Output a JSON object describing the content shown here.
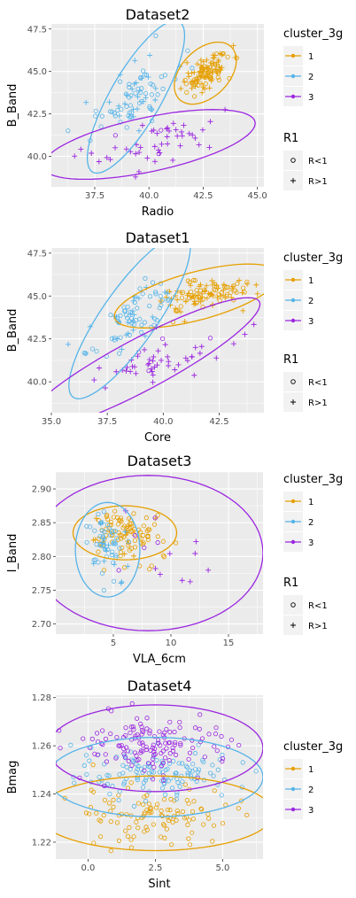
{
  "figure": {
    "panels": [
      {
        "title": "Dataset2",
        "x_label": "Radio",
        "y_label": "B_Band"
      },
      {
        "title": "Dataset1",
        "x_label": "Core",
        "y_label": "B_Band"
      },
      {
        "title": "Dataset3",
        "x_label": "VLA_6cm",
        "y_label": "I_Band"
      },
      {
        "title": "Dataset4",
        "x_label": "Sint",
        "y_label": "Bmag"
      }
    ]
  },
  "colors": {
    "cluster_1": "#E69F00",
    "cluster_2": "#56B4E9",
    "cluster_3": "#9B26E0",
    "panel_bg": "#EBEBEB",
    "grid": "#FFFFFF"
  },
  "chart_data": [
    {
      "type": "scatter",
      "title": "Dataset2",
      "xlabel": "Radio",
      "ylabel": "B_Band",
      "xlim": [
        35.5,
        45.3
      ],
      "ylim": [
        38.2,
        47.8
      ],
      "x_ticks": [
        37.5,
        40.0,
        42.5,
        45.0
      ],
      "x_tick_labels": [
        "37.5",
        "40.0",
        "42.5",
        "45.0"
      ],
      "y_ticks": [
        40.0,
        42.5,
        45.0,
        47.5
      ],
      "y_tick_labels": [
        "40.0",
        "42.5",
        "45.0",
        "47.5"
      ],
      "legend": [
        {
          "title": "cluster_3g",
          "entries": [
            "1",
            "2",
            "3"
          ]
        },
        {
          "title": "R1",
          "entries": [
            "R<1",
            "R>1"
          ]
        }
      ],
      "legend_position": "right",
      "ellipses": [
        {
          "cluster": "1",
          "cx": 42.6,
          "cy": 44.9,
          "rx": 1.7,
          "ry": 1.4,
          "angle_deg": 45
        },
        {
          "cluster": "2",
          "cx": 39.4,
          "cy": 43.5,
          "rx": 4.0,
          "ry": 1.5,
          "angle_deg": 60
        },
        {
          "cluster": "3",
          "cx": 40.0,
          "cy": 40.7,
          "rx": 5.0,
          "ry": 1.6,
          "angle_deg": 12
        }
      ],
      "groups": [
        {
          "cluster": "1",
          "cx": 42.6,
          "cy": 44.9,
          "sx": 0.55,
          "sy": 0.55,
          "rho": 0.6,
          "n": 110,
          "frac_plus": 0.55
        },
        {
          "cluster": "2",
          "cx": 39.4,
          "cy": 43.6,
          "sx": 0.9,
          "sy": 1.3,
          "rho": 0.7,
          "n": 80,
          "frac_plus": 0.3
        },
        {
          "cluster": "3",
          "cx": 40.0,
          "cy": 40.8,
          "sx": 1.6,
          "sy": 0.8,
          "rho": 0.45,
          "n": 50,
          "frac_plus": 0.9
        }
      ]
    },
    {
      "type": "scatter",
      "title": "Dataset1",
      "xlabel": "Core",
      "ylabel": "B_Band",
      "xlim": [
        35.0,
        44.5
      ],
      "ylim": [
        38.2,
        47.8
      ],
      "x_ticks": [
        35.0,
        37.5,
        40.0,
        42.5
      ],
      "x_tick_labels": [
        "35.0",
        "37.5",
        "40.0",
        "42.5"
      ],
      "y_ticks": [
        40.0,
        42.5,
        45.0,
        47.5
      ],
      "y_tick_labels": [
        "40.0",
        "42.5",
        "45.0",
        "47.5"
      ],
      "legend": [
        {
          "title": "cluster_3g",
          "entries": [
            "1",
            "2",
            "3"
          ]
        },
        {
          "title": "R1",
          "entries": [
            "R<1",
            "R>1"
          ]
        }
      ],
      "legend_position": "right",
      "ellipses": [
        {
          "cluster": "1",
          "cx": 41.5,
          "cy": 45.0,
          "rx": 3.8,
          "ry": 1.4,
          "angle_deg": 15
        },
        {
          "cluster": "2",
          "cx": 38.5,
          "cy": 43.8,
          "rx": 4.4,
          "ry": 1.6,
          "angle_deg": 55
        },
        {
          "cluster": "3",
          "cx": 39.0,
          "cy": 41.0,
          "rx": 6.0,
          "ry": 1.5,
          "angle_deg": 28
        }
      ],
      "groups": [
        {
          "cluster": "1",
          "cx": 41.6,
          "cy": 45.0,
          "sx": 1.1,
          "sy": 0.5,
          "rho": 0.4,
          "n": 110,
          "frac_plus": 0.6
        },
        {
          "cluster": "2",
          "cx": 38.6,
          "cy": 43.8,
          "sx": 1.0,
          "sy": 1.1,
          "rho": 0.75,
          "n": 80,
          "frac_plus": 0.3
        },
        {
          "cluster": "3",
          "cx": 39.2,
          "cy": 41.0,
          "sx": 1.9,
          "sy": 0.9,
          "rho": 0.7,
          "n": 50,
          "frac_plus": 0.9
        }
      ]
    },
    {
      "type": "scatter",
      "title": "Dataset3",
      "xlabel": "VLA_6cm",
      "ylabel": "I_Band",
      "xlim": [
        0.0,
        18.0
      ],
      "ylim": [
        2.685,
        2.925
      ],
      "x_ticks": [
        5,
        10,
        15
      ],
      "x_tick_labels": [
        "5",
        "10",
        "15"
      ],
      "y_ticks": [
        2.7,
        2.75,
        2.8,
        2.85,
        2.9
      ],
      "y_tick_labels": [
        "2.70",
        "2.75",
        "2.80",
        "2.85",
        "2.90"
      ],
      "legend": [
        {
          "title": "cluster_3g",
          "entries": [
            "1",
            "2",
            "3"
          ]
        },
        {
          "title": "R1",
          "entries": [
            "R<1",
            "R>1"
          ]
        }
      ],
      "legend_position": "right",
      "ellipses": [
        {
          "cluster": "1",
          "cx": 6.0,
          "cy": 2.835,
          "rx": 4.5,
          "ry": 0.04,
          "angle_deg": 0
        },
        {
          "cluster": "2",
          "cx": 4.5,
          "cy": 2.81,
          "rx": 2.8,
          "ry": 0.07,
          "angle_deg": 0
        },
        {
          "cluster": "3",
          "cx": 8.0,
          "cy": 2.805,
          "rx": 10.0,
          "ry": 0.115,
          "angle_deg": 0
        }
      ],
      "groups": [
        {
          "cluster": "1",
          "cx": 6.0,
          "cy": 2.835,
          "sx": 1.6,
          "sy": 0.018,
          "rho": -0.2,
          "n": 100,
          "frac_plus": 0.2
        },
        {
          "cluster": "2",
          "cx": 4.5,
          "cy": 2.815,
          "sx": 1.0,
          "sy": 0.025,
          "rho": -0.3,
          "n": 60,
          "frac_plus": 0.15
        },
        {
          "cluster": "3",
          "cx": 9.0,
          "cy": 2.81,
          "sx": 2.4,
          "sy": 0.03,
          "rho": -0.3,
          "n": 14,
          "frac_plus": 0.85
        }
      ]
    },
    {
      "type": "scatter",
      "title": "Dataset4",
      "xlabel": "Sint",
      "ylabel": "Bmag",
      "xlim": [
        -1.2,
        6.5
      ],
      "ylim": [
        1.213,
        1.281
      ],
      "x_ticks": [
        0.0,
        2.5,
        5.0
      ],
      "x_tick_labels": [
        "0.0",
        "2.5",
        "5.0"
      ],
      "y_ticks": [
        1.22,
        1.24,
        1.26,
        1.28
      ],
      "y_tick_labels": [
        "1.22",
        "1.24",
        "1.26",
        "1.28"
      ],
      "legend": [
        {
          "title": "cluster_3g",
          "entries": [
            "1",
            "2",
            "3"
          ]
        }
      ],
      "legend_position": "right",
      "ellipses": [
        {
          "cluster": "1",
          "cx": 2.5,
          "cy": 1.232,
          "rx": 4.4,
          "ry": 0.0155,
          "angle_deg": 0
        },
        {
          "cluster": "2",
          "cx": 2.5,
          "cy": 1.247,
          "rx": 4.0,
          "ry": 0.0165,
          "angle_deg": 0
        },
        {
          "cluster": "3",
          "cx": 2.5,
          "cy": 1.259,
          "rx": 4.0,
          "ry": 0.018,
          "angle_deg": 0
        }
      ],
      "groups": [
        {
          "cluster": "1",
          "cx": 2.5,
          "cy": 1.231,
          "sx": 1.5,
          "sy": 0.006,
          "rho": 0,
          "n": 110,
          "frac_plus": 0
        },
        {
          "cluster": "2",
          "cx": 2.5,
          "cy": 1.248,
          "sx": 1.5,
          "sy": 0.005,
          "rho": 0,
          "n": 130,
          "frac_plus": 0
        },
        {
          "cluster": "3",
          "cx": 2.5,
          "cy": 1.261,
          "sx": 1.5,
          "sy": 0.006,
          "rho": 0,
          "n": 140,
          "frac_plus": 0
        }
      ]
    }
  ]
}
